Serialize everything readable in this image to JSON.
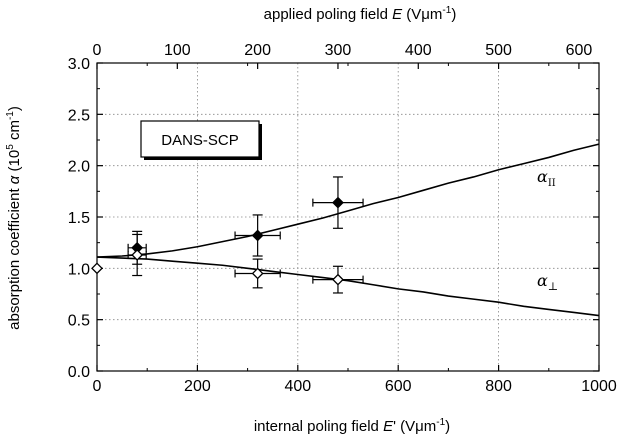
{
  "chart_data": {
    "type": "scatter",
    "title": "",
    "bottom_axis": {
      "label_prefix": "internal poling field ",
      "label_var": "E",
      "label_units": "'  (Vμm",
      "label_sup": "-1",
      "label_close": ")",
      "range": [
        0,
        1000
      ],
      "ticks": [
        "0",
        "200",
        "400",
        "600",
        "800",
        "1000"
      ],
      "tick_values": [
        0,
        200,
        400,
        600,
        800,
        1000
      ]
    },
    "top_axis": {
      "label_prefix": "applied poling field ",
      "label_var": "E",
      "label_units": "  (Vμm",
      "label_sup": "-1",
      "label_close": ")",
      "range": [
        0,
        625
      ],
      "ticks": [
        "0",
        "100",
        "200",
        "300",
        "400",
        "500",
        "600"
      ],
      "tick_values": [
        0,
        100,
        200,
        300,
        400,
        500,
        600
      ]
    },
    "y_axis": {
      "label_prefix": "absorption coefficient ",
      "label_var": "α",
      "label_units": "  (10",
      "label_sup1": "5",
      "label_mid": " cm",
      "label_sup2": "-1",
      "label_close": ")",
      "range": [
        0,
        3.0
      ],
      "ticks": [
        "0.0",
        "0.5",
        "1.0",
        "1.5",
        "2.0",
        "2.5",
        "3.0"
      ],
      "tick_values": [
        0,
        0.5,
        1.0,
        1.5,
        2.0,
        2.5,
        3.0
      ]
    },
    "grid": true,
    "legend_box": {
      "text": "DANS-SCP",
      "placement": "top-left"
    },
    "series": [
      {
        "name": "α∥",
        "label_main": "α",
        "label_sub": "II",
        "marker": "filled-diamond",
        "points": [
          {
            "x": 80,
            "y": 1.2,
            "xerr": 18,
            "yerr": 0.16
          },
          {
            "x": 320,
            "y": 1.32,
            "xerr": 45,
            "yerr": 0.2
          },
          {
            "x": 480,
            "y": 1.64,
            "xerr": 50,
            "yerr": 0.25
          }
        ],
        "fit_curve": {
          "x": [
            0,
            50,
            100,
            150,
            200,
            250,
            300,
            350,
            400,
            450,
            500,
            550,
            600,
            650,
            700,
            750,
            800,
            850,
            900,
            950,
            1000
          ],
          "y": [
            1.11,
            1.12,
            1.14,
            1.17,
            1.21,
            1.26,
            1.31,
            1.37,
            1.43,
            1.49,
            1.56,
            1.63,
            1.69,
            1.76,
            1.83,
            1.89,
            1.96,
            2.02,
            2.08,
            2.15,
            2.21
          ]
        }
      },
      {
        "name": "α⊥",
        "label_main": "α",
        "label_sub": "⊥",
        "marker": "open-diamond",
        "points": [
          {
            "x": 0,
            "y": 1.0,
            "xerr": 0,
            "yerr": 0
          },
          {
            "x": 80,
            "y": 1.13,
            "xerr": 18,
            "yerr": 0.2
          },
          {
            "x": 320,
            "y": 0.95,
            "xerr": 45,
            "yerr": 0.14
          },
          {
            "x": 480,
            "y": 0.89,
            "xerr": 50,
            "yerr": 0.13
          }
        ],
        "fit_curve": {
          "x": [
            0,
            50,
            100,
            150,
            200,
            250,
            300,
            350,
            400,
            450,
            500,
            550,
            600,
            650,
            700,
            750,
            800,
            850,
            900,
            950,
            1000
          ],
          "y": [
            1.11,
            1.1,
            1.09,
            1.07,
            1.05,
            1.03,
            1.0,
            0.97,
            0.94,
            0.91,
            0.88,
            0.84,
            0.8,
            0.77,
            0.73,
            0.7,
            0.67,
            0.63,
            0.6,
            0.57,
            0.54
          ]
        }
      }
    ]
  }
}
